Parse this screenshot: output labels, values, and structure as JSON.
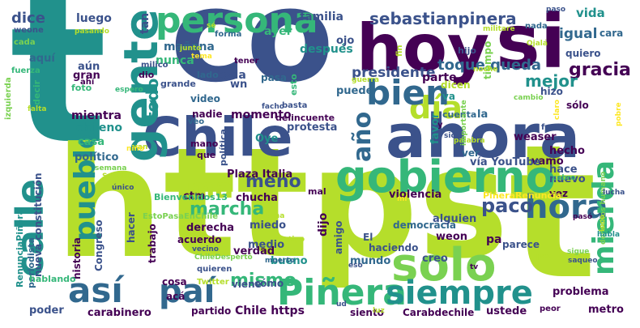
{
  "palette": {
    "dark_purple": "#440154",
    "indigo": "#3b528b",
    "blue": "#31688e",
    "teal": "#21918c",
    "green": "#35b779",
    "lime": "#7ad151",
    "yellow_green": "#b5de2b",
    "yellow": "#fde725"
  },
  "words": [
    "t",
    "co",
    "https",
    "t",
    "hoy",
    "si",
    "ahora",
    "Chile",
    "gente",
    "persona",
    "gobierno",
    "solo",
    "Piñera",
    "siempre",
    "día",
    "bien",
    "hora",
    "pueblo",
    "calle",
    "así",
    "paí",
    "ma",
    "año",
    "mierda",
    "sebastianpinera",
    "gracia",
    "mejor",
    "dice",
    "todo",
    "marcha",
    "paco",
    "mismo",
    "meno",
    "toque queda",
    "presidente",
    "igual",
    "vida",
    "familia",
    "después",
    "ayer",
    "mañana",
    "nunca",
    "tan",
    "luego",
    "aún",
    "aquí",
    "gran",
    "toda",
    "wn",
    "momento",
    "delincuente",
    "protesta",
    "mientra",
    "chileno",
    "casa",
    "político",
    "Oye",
    "video",
    "nadie",
    "lado",
    "grande",
    "dio",
    "milico",
    "forma",
    "tener",
    "pasa",
    "esto",
    "ojo",
    "creo",
    "puede",
    "parte",
    "favor",
    "ver",
    "va",
    "la",
    "dicen",
    "tiempo",
    "hijo",
    "quiero",
    "cara",
    "sólo",
    "hecho",
    "hace",
    "nuevo",
    "vamo",
    "weaser",
    "vía YouTube",
    "Plaza Italia",
    "ctm",
    "chucha",
    "mal",
    "dijo",
    "violencia",
    "democracia",
    "alguien",
    "weon",
    "pa",
    "parece",
    "vez",
    "derecha",
    "acuerdo",
    "medio",
    "verdad",
    "bueno",
    "miedo",
    "amigo",
    "mundo",
    "El",
    "haciendo",
    "trabajo",
    "hacer",
    "historia",
    "nueva constitución",
    "Congreso",
    "cosa",
    "acá",
    "viene",
    "cómo",
    "carabinero",
    "poder",
    "partido",
    "Chile https",
    "siento",
    "Carabdechile",
    "ustede",
    "metro",
    "problema",
    "Bienvenidos13",
    "RenunciaPiñera",
    "periodista",
    "PiñeraRenuncia",
    "EstoPasaEnChile",
    "ChileDespertó",
    "Twitter",
    "hablando",
    "derechos humano",
    "foto",
    "decir",
    "cada",
    "weone",
    "fuerza",
    "izquierda",
    "pasando",
    "militare",
    "nada",
    "Ojalá",
    "paso",
    "sé",
    "junto",
    "tema",
    "espero",
    "cambio",
    "noche",
    "fue",
    "guerra",
    "hizo",
    "claro",
    "pobre",
    "basta",
    "cuenta",
    "sido",
    "palabra",
    "importante",
    "van",
    "niño",
    "semana",
    "único",
    "Santiago",
    "facho",
    "veo",
    "mano",
    "que",
    "política",
    "tipo",
    "vecino",
    "muerto",
    "quieren",
    "eso",
    "ud",
    "misma",
    "sigue",
    "saqueo",
    "paz",
    "peor",
    "mí",
    "lucha",
    "loco",
    "falta",
    "pasó",
    "habla",
    "ahí",
    "y",
    "fin",
    "luz",
    "tv",
    "cabro"
  ]
}
